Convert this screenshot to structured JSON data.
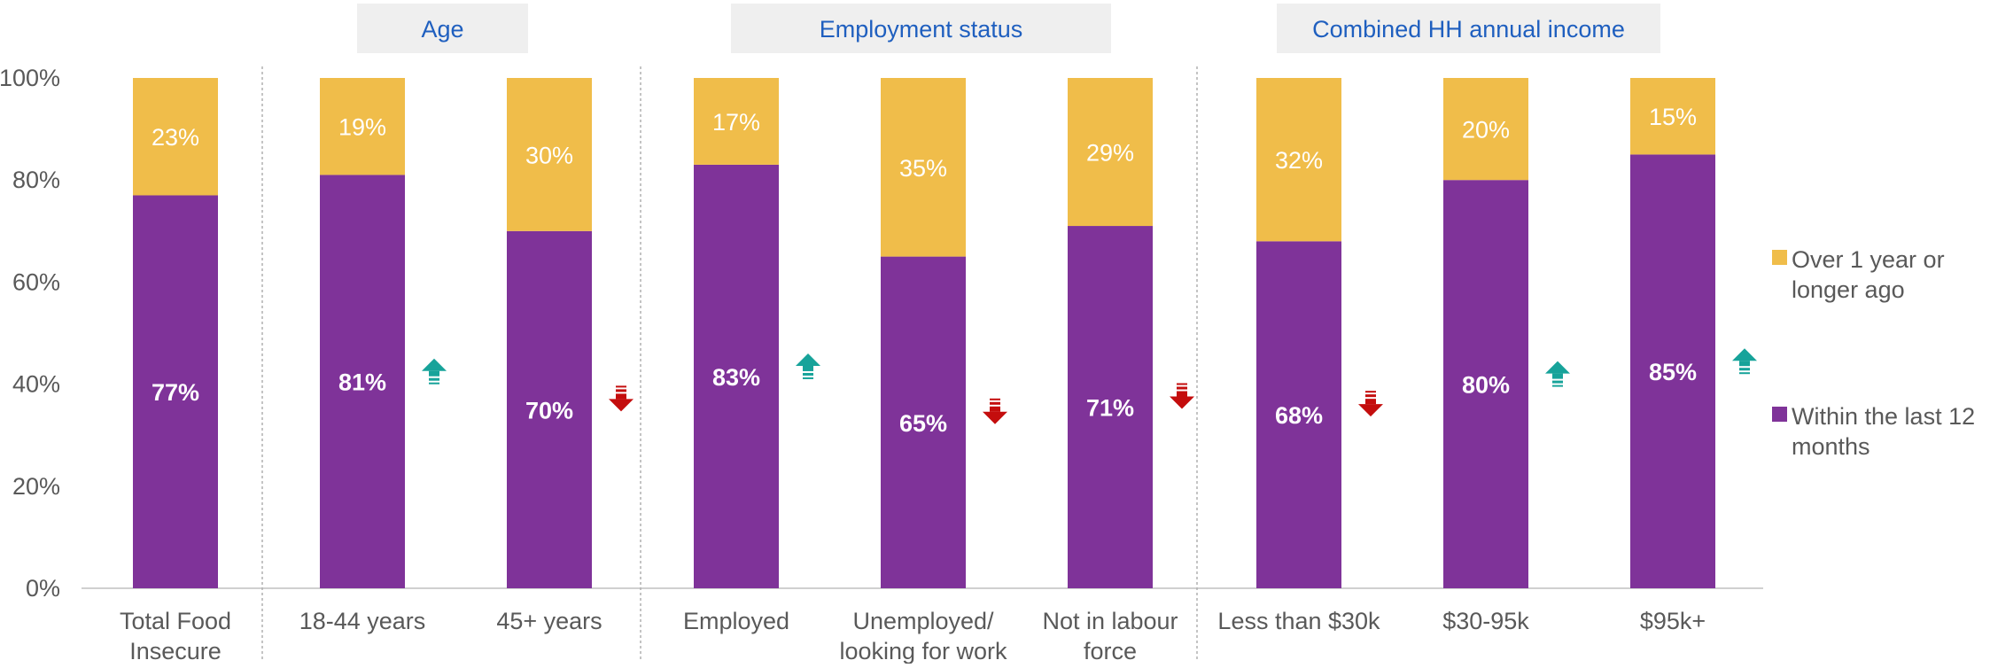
{
  "chart_data": {
    "type": "bar",
    "stacked": true,
    "groups": [
      {
        "label": "",
        "categories": [
          0
        ]
      },
      {
        "label": "Age",
        "categories": [
          1,
          2
        ]
      },
      {
        "label": "Employment status",
        "categories": [
          3,
          4,
          5
        ]
      },
      {
        "label": "Combined HH annual income",
        "categories": [
          6,
          7,
          8
        ]
      }
    ],
    "categories": [
      [
        "Total Food",
        "Insecure"
      ],
      [
        "18-44 years"
      ],
      [
        "45+ years"
      ],
      [
        "Employed"
      ],
      [
        "Unemployed/",
        "looking for work"
      ],
      [
        "Not in labour",
        "force"
      ],
      [
        "Less than $30k"
      ],
      [
        "$30-95k"
      ],
      [
        "$95k+"
      ]
    ],
    "series": [
      {
        "name": "Within the last 12 months",
        "legend_lines": [
          "Within the last 12",
          "months"
        ],
        "color": "#7f3399",
        "values": [
          77,
          81,
          70,
          83,
          65,
          71,
          68,
          80,
          85
        ],
        "labels": [
          "77%",
          "81%",
          "70%",
          "83%",
          "65%",
          "71%",
          "68%",
          "80%",
          "85%"
        ]
      },
      {
        "name": "Over 1 year or longer ago",
        "legend_lines": [
          "Over 1 year or",
          "longer ago"
        ],
        "color": "#f0bd4a",
        "values": [
          23,
          19,
          30,
          17,
          35,
          29,
          32,
          20,
          15
        ],
        "labels": [
          "23%",
          "19%",
          "30%",
          "17%",
          "35%",
          "29%",
          "32%",
          "20%",
          "15%"
        ]
      }
    ],
    "significance": [
      "none",
      "up",
      "down",
      "up",
      "down",
      "down",
      "down",
      "up",
      "up"
    ],
    "significance_colors": {
      "up": "#17a39a",
      "down": "#c40d0d"
    },
    "y_ticks": [
      "0%",
      "20%",
      "40%",
      "60%",
      "80%",
      "100%"
    ],
    "ylim": [
      0,
      100
    ],
    "legend_position": "right",
    "grid": false
  }
}
